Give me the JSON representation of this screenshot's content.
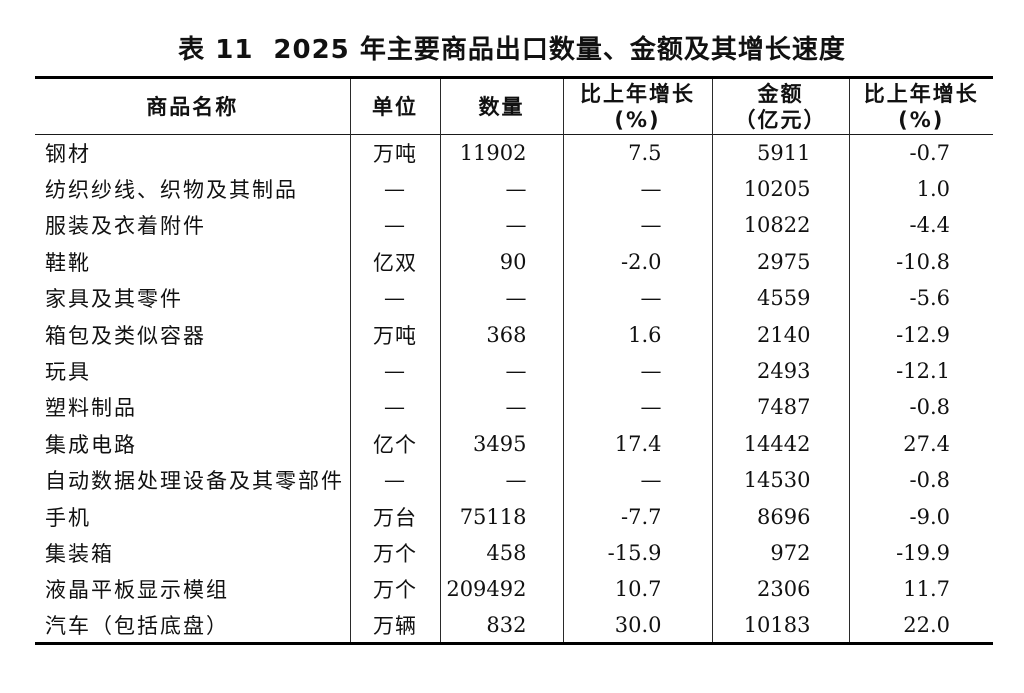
{
  "title": {
    "table_no": "表 11",
    "text": "2025 年主要商品出口数量、金额及其增长速度"
  },
  "table": {
    "headers": {
      "name": "商品名称",
      "unit": "单位",
      "quantity": "数量",
      "qty_growth_line1": "比上年增长",
      "qty_growth_line2": "(%)",
      "amount_line1": "金额",
      "amount_line2": "（亿元）",
      "amount_growth_line1": "比上年增长",
      "amount_growth_line2": "(%)"
    },
    "empty_marker": "—",
    "rows": [
      {
        "name": "钢材",
        "unit": "万吨",
        "quantity": "11902",
        "qty_growth": "7.5",
        "amount": "5911",
        "amount_growth": "-0.7"
      },
      {
        "name": "纺织纱线、织物及其制品",
        "unit": "—",
        "quantity": "—",
        "qty_growth": "—",
        "amount": "10205",
        "amount_growth": "1.0"
      },
      {
        "name": "服装及衣着附件",
        "unit": "—",
        "quantity": "—",
        "qty_growth": "—",
        "amount": "10822",
        "amount_growth": "-4.4"
      },
      {
        "name": "鞋靴",
        "unit": "亿双",
        "quantity": "90",
        "qty_growth": "-2.0",
        "amount": "2975",
        "amount_growth": "-10.8"
      },
      {
        "name": "家具及其零件",
        "unit": "—",
        "quantity": "—",
        "qty_growth": "—",
        "amount": "4559",
        "amount_growth": "-5.6"
      },
      {
        "name": "箱包及类似容器",
        "unit": "万吨",
        "quantity": "368",
        "qty_growth": "1.6",
        "amount": "2140",
        "amount_growth": "-12.9"
      },
      {
        "name": "玩具",
        "unit": "—",
        "quantity": "—",
        "qty_growth": "—",
        "amount": "2493",
        "amount_growth": "-12.1"
      },
      {
        "name": "塑料制品",
        "unit": "—",
        "quantity": "—",
        "qty_growth": "—",
        "amount": "7487",
        "amount_growth": "-0.8"
      },
      {
        "name": "集成电路",
        "unit": "亿个",
        "quantity": "3495",
        "qty_growth": "17.4",
        "amount": "14442",
        "amount_growth": "27.4"
      },
      {
        "name": "自动数据处理设备及其零部件",
        "unit": "—",
        "quantity": "—",
        "qty_growth": "—",
        "amount": "14530",
        "amount_growth": "-0.8"
      },
      {
        "name": "手机",
        "unit": "万台",
        "quantity": "75118",
        "qty_growth": "-7.7",
        "amount": "8696",
        "amount_growth": "-9.0"
      },
      {
        "name": "集装箱",
        "unit": "万个",
        "quantity": "458",
        "qty_growth": "-15.9",
        "amount": "972",
        "amount_growth": "-19.9"
      },
      {
        "name": "液晶平板显示模组",
        "unit": "万个",
        "quantity": "209492",
        "qty_growth": "10.7",
        "amount": "2306",
        "amount_growth": "11.7"
      },
      {
        "name": "汽车（包括底盘）",
        "unit": "万辆",
        "quantity": "832",
        "qty_growth": "30.0",
        "amount": "10183",
        "amount_growth": "22.0"
      }
    ]
  },
  "colors": {
    "text": "#111111",
    "rule_heavy": "#000000",
    "rule_light": "#2a2a2a",
    "background": "#ffffff"
  }
}
